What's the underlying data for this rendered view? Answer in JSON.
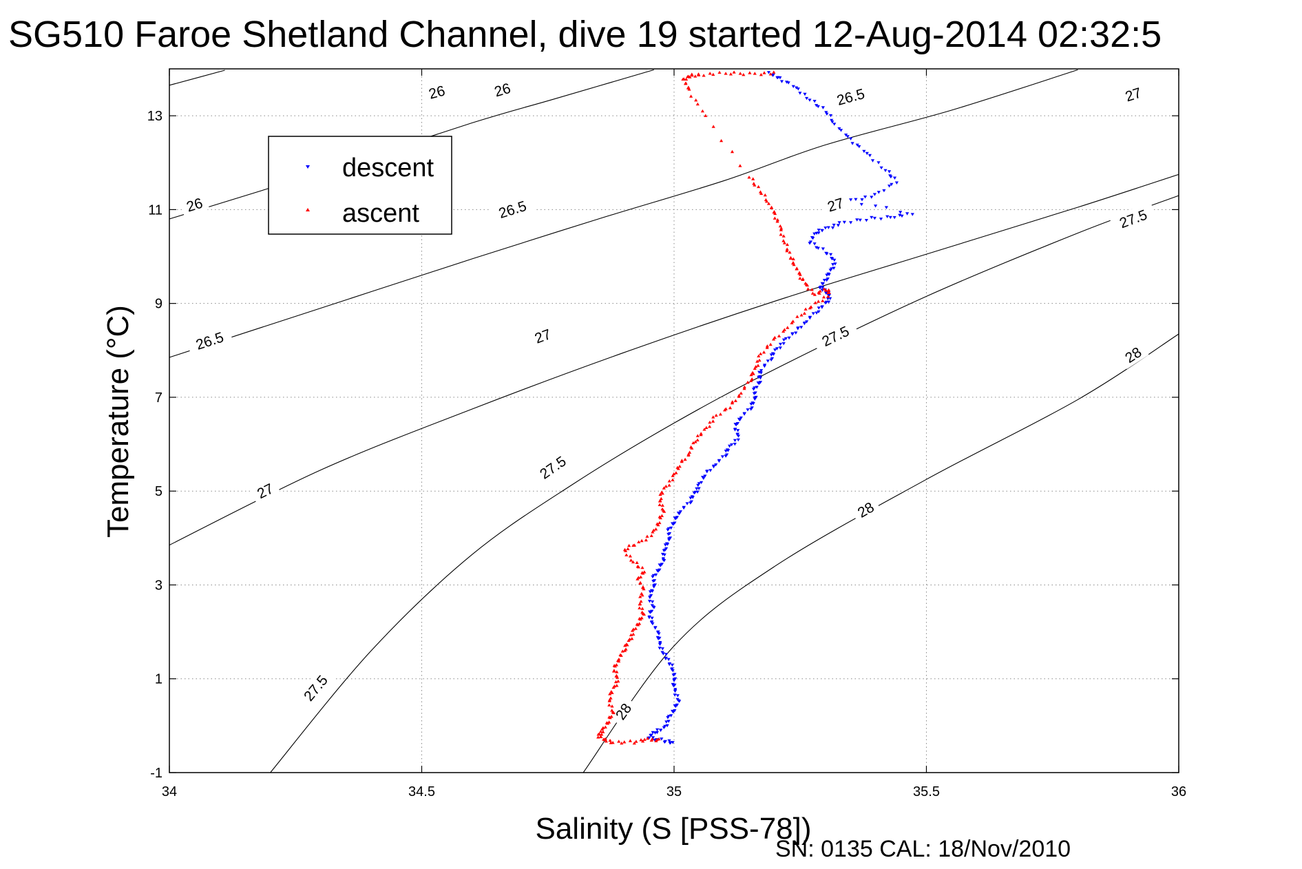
{
  "chart_data": {
    "type": "scatter",
    "title": "SG510 Faroe Shetland Channel, dive 19 started 12-Aug-2014 02:32:5",
    "xlabel": "Salinity (S [PSS-78])",
    "ylabel": "Temperature (°C)",
    "footer": "SN: 0135  CAL: 18/Nov/2010",
    "xlim": [
      34,
      36
    ],
    "ylim": [
      -1,
      14
    ],
    "xticks": [
      "34",
      "34.5",
      "35",
      "35.5",
      "36"
    ],
    "yticks": [
      "-1",
      "1",
      "3",
      "5",
      "7",
      "9",
      "11",
      "13"
    ],
    "grid": true,
    "legend_position": "top-left",
    "density_contours": [
      {
        "level": "26",
        "points": [
          [
            34.0,
            13.65
          ],
          [
            34.11,
            13.97
          ]
        ],
        "labels": [
          [
            34.53,
            13.5
          ]
        ]
      },
      {
        "level": "26",
        "points": [
          [
            34.0,
            10.8
          ],
          [
            34.3,
            11.8
          ],
          [
            34.6,
            12.85
          ],
          [
            34.76,
            13.35
          ],
          [
            34.96,
            13.98
          ]
        ],
        "labels": [
          [
            34.05,
            11.1
          ],
          [
            34.66,
            13.55
          ]
        ]
      },
      {
        "level": "26.5",
        "points": [
          [
            34.0,
            7.85
          ],
          [
            34.3,
            8.9
          ],
          [
            34.6,
            9.95
          ],
          [
            34.85,
            10.8
          ],
          [
            35.1,
            11.62
          ],
          [
            35.3,
            12.38
          ],
          [
            35.55,
            13.12
          ],
          [
            35.8,
            13.98
          ]
        ],
        "labels": [
          [
            34.08,
            8.2
          ],
          [
            34.68,
            11.0
          ],
          [
            35.35,
            13.4
          ]
        ]
      },
      {
        "level": "27",
        "points": [
          [
            34.0,
            3.85
          ],
          [
            34.3,
            5.45
          ],
          [
            34.6,
            6.75
          ],
          [
            34.9,
            7.95
          ],
          [
            35.2,
            9.05
          ],
          [
            35.5,
            10.05
          ],
          [
            35.8,
            11.05
          ],
          [
            36.0,
            11.75
          ]
        ],
        "labels": [
          [
            34.19,
            5.0
          ],
          [
            34.74,
            8.3
          ],
          [
            35.32,
            11.1
          ],
          [
            35.91,
            13.45
          ]
        ]
      },
      {
        "level": "27.5",
        "points": [
          [
            34.2,
            -1.0
          ],
          [
            34.4,
            1.6
          ],
          [
            34.6,
            3.65
          ],
          [
            34.8,
            5.15
          ],
          [
            35.0,
            6.45
          ],
          [
            35.2,
            7.6
          ],
          [
            35.5,
            9.15
          ],
          [
            35.8,
            10.5
          ],
          [
            36.0,
            11.3
          ]
        ],
        "labels": [
          [
            34.29,
            0.8
          ],
          [
            34.76,
            5.5
          ],
          [
            35.32,
            8.3
          ],
          [
            35.91,
            10.8
          ]
        ]
      },
      {
        "level": "28",
        "points": [
          [
            34.82,
            -1.0
          ],
          [
            35.0,
            1.7
          ],
          [
            35.2,
            3.4
          ],
          [
            35.5,
            5.25
          ],
          [
            35.8,
            6.95
          ],
          [
            36.0,
            8.35
          ]
        ],
        "labels": [
          [
            34.9,
            0.3
          ],
          [
            35.38,
            4.6
          ],
          [
            35.91,
            7.9
          ]
        ]
      }
    ],
    "series": [
      {
        "name": "descent",
        "color": "#0000ff",
        "marker": "triangle-down",
        "points": [
          [
            35.19,
            13.9
          ],
          [
            35.21,
            13.8
          ],
          [
            35.24,
            13.6
          ],
          [
            35.27,
            13.35
          ],
          [
            35.3,
            13.1
          ],
          [
            35.32,
            12.8
          ],
          [
            35.35,
            12.5
          ],
          [
            35.38,
            12.2
          ],
          [
            35.42,
            11.85
          ],
          [
            35.44,
            11.6
          ],
          [
            35.4,
            11.3
          ],
          [
            35.35,
            11.2
          ],
          [
            35.47,
            10.9
          ],
          [
            35.43,
            10.85
          ],
          [
            35.38,
            10.8
          ],
          [
            35.33,
            10.7
          ],
          [
            35.3,
            10.6
          ],
          [
            35.28,
            10.5
          ],
          [
            35.27,
            10.3
          ],
          [
            35.3,
            10.1
          ],
          [
            35.32,
            9.9
          ],
          [
            35.31,
            9.7
          ],
          [
            35.3,
            9.5
          ],
          [
            35.29,
            9.35
          ],
          [
            35.3,
            9.25
          ],
          [
            35.31,
            9.15
          ],
          [
            35.3,
            9.0
          ],
          [
            35.28,
            8.8
          ],
          [
            35.26,
            8.6
          ],
          [
            35.24,
            8.4
          ],
          [
            35.22,
            8.2
          ],
          [
            35.2,
            8.0
          ],
          [
            35.19,
            7.8
          ],
          [
            35.17,
            7.55
          ],
          [
            35.17,
            7.35
          ],
          [
            35.16,
            7.15
          ],
          [
            35.16,
            6.95
          ],
          [
            35.15,
            6.75
          ],
          [
            35.13,
            6.55
          ],
          [
            35.12,
            6.35
          ],
          [
            35.13,
            6.15
          ],
          [
            35.11,
            5.95
          ],
          [
            35.1,
            5.75
          ],
          [
            35.08,
            5.55
          ],
          [
            35.06,
            5.35
          ],
          [
            35.05,
            5.1
          ],
          [
            35.04,
            4.95
          ],
          [
            35.03,
            4.75
          ],
          [
            35.01,
            4.55
          ],
          [
            35.0,
            4.35
          ],
          [
            34.99,
            4.15
          ],
          [
            34.99,
            3.95
          ],
          [
            34.98,
            3.75
          ],
          [
            34.98,
            3.55
          ],
          [
            34.97,
            3.35
          ],
          [
            34.96,
            3.15
          ],
          [
            34.96,
            2.95
          ],
          [
            34.95,
            2.75
          ],
          [
            34.96,
            2.55
          ],
          [
            34.95,
            2.35
          ],
          [
            34.96,
            2.15
          ],
          [
            34.97,
            1.95
          ],
          [
            34.97,
            1.75
          ],
          [
            34.98,
            1.55
          ],
          [
            34.99,
            1.35
          ],
          [
            35.0,
            1.15
          ],
          [
            35.0,
            0.95
          ],
          [
            35.0,
            0.75
          ],
          [
            35.01,
            0.55
          ],
          [
            35.0,
            0.35
          ],
          [
            34.99,
            0.15
          ],
          [
            34.98,
            -0.05
          ],
          [
            34.96,
            -0.15
          ],
          [
            34.95,
            -0.25
          ],
          [
            34.98,
            -0.32
          ],
          [
            35.0,
            -0.38
          ]
        ]
      },
      {
        "name": "ascent",
        "color": "#ff0000",
        "marker": "triangle-up",
        "points": [
          [
            35.2,
            13.9
          ],
          [
            35.15,
            13.9
          ],
          [
            35.1,
            13.9
          ],
          [
            35.05,
            13.88
          ],
          [
            35.03,
            13.85
          ],
          [
            35.02,
            13.75
          ],
          [
            35.03,
            13.55
          ],
          [
            35.06,
            13.0
          ],
          [
            35.15,
            11.7
          ],
          [
            35.17,
            11.4
          ],
          [
            35.19,
            11.1
          ],
          [
            35.2,
            10.9
          ],
          [
            35.21,
            10.6
          ],
          [
            35.22,
            10.3
          ],
          [
            35.23,
            10.0
          ],
          [
            35.24,
            9.8
          ],
          [
            35.25,
            9.6
          ],
          [
            35.26,
            9.4
          ],
          [
            35.28,
            9.2
          ],
          [
            35.3,
            9.3
          ],
          [
            35.31,
            9.2
          ],
          [
            35.28,
            9.0
          ],
          [
            35.25,
            8.75
          ],
          [
            35.22,
            8.45
          ],
          [
            35.19,
            8.15
          ],
          [
            35.17,
            7.85
          ],
          [
            35.16,
            7.6
          ],
          [
            35.15,
            7.35
          ],
          [
            35.13,
            7.05
          ],
          [
            35.11,
            6.8
          ],
          [
            35.08,
            6.55
          ],
          [
            35.06,
            6.3
          ],
          [
            35.04,
            6.05
          ],
          [
            35.03,
            5.8
          ],
          [
            35.01,
            5.55
          ],
          [
            35.0,
            5.3
          ],
          [
            34.98,
            5.05
          ],
          [
            34.97,
            4.8
          ],
          [
            34.98,
            4.6
          ],
          [
            34.97,
            4.35
          ],
          [
            34.96,
            4.1
          ],
          [
            34.93,
            3.9
          ],
          [
            34.9,
            3.75
          ],
          [
            34.92,
            3.5
          ],
          [
            34.94,
            3.3
          ],
          [
            34.93,
            3.1
          ],
          [
            34.94,
            2.9
          ],
          [
            34.93,
            2.6
          ],
          [
            34.94,
            2.4
          ],
          [
            34.93,
            2.2
          ],
          [
            34.92,
            2.0
          ],
          [
            34.91,
            1.8
          ],
          [
            34.9,
            1.6
          ],
          [
            34.89,
            1.4
          ],
          [
            34.88,
            1.2
          ],
          [
            34.89,
            1.0
          ],
          [
            34.88,
            0.8
          ],
          [
            34.87,
            0.55
          ],
          [
            34.88,
            0.3
          ],
          [
            34.87,
            0.1
          ],
          [
            34.86,
            -0.1
          ],
          [
            34.85,
            -0.2
          ],
          [
            34.86,
            -0.3
          ],
          [
            34.88,
            -0.35
          ],
          [
            34.92,
            -0.35
          ],
          [
            34.95,
            -0.3
          ],
          [
            34.97,
            -0.3
          ]
        ]
      }
    ]
  }
}
